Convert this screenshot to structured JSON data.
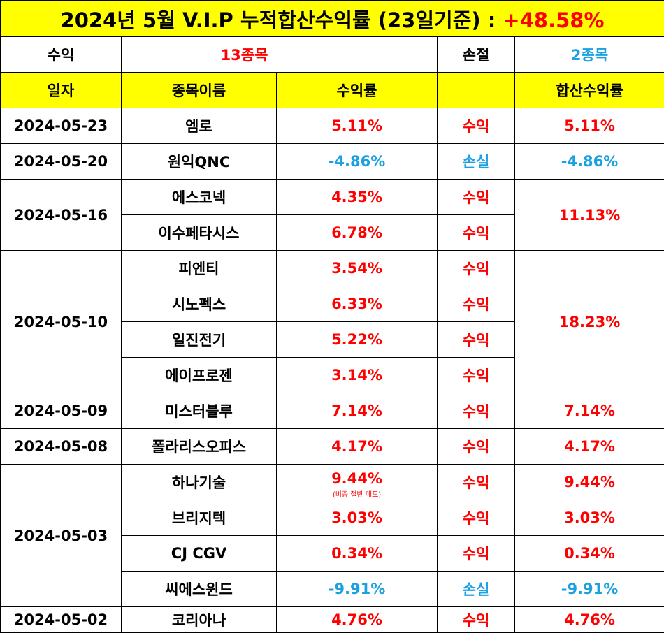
{
  "title": {
    "text": "2024년 5월 V.I.P 누적합산수익률 (23일기준) : ",
    "value": "+48.58%"
  },
  "summary": {
    "profit_label": "수익",
    "profit_value": "13종목",
    "loss_label": "손절",
    "loss_value": "2종목"
  },
  "headers": {
    "date": "일자",
    "name": "종목이름",
    "rate": "수익률",
    "result": "",
    "total": "합산수익률"
  },
  "groups": [
    {
      "date": "2024-05-23",
      "total": "5.11%",
      "total_color": "red",
      "rows": [
        {
          "name": "엠로",
          "rate": "5.11%",
          "color": "red",
          "result": "수익"
        }
      ]
    },
    {
      "date": "2024-05-20",
      "total": "-4.86%",
      "total_color": "blue",
      "rows": [
        {
          "name": "원익QNC",
          "rate": "-4.86%",
          "color": "blue",
          "result": "손실"
        }
      ]
    },
    {
      "date": "2024-05-16",
      "total": "11.13%",
      "total_color": "red",
      "rows": [
        {
          "name": "에스코넥",
          "rate": "4.35%",
          "color": "red",
          "result": "수익"
        },
        {
          "name": "이수페타시스",
          "rate": "6.78%",
          "color": "red",
          "result": "수익"
        }
      ]
    },
    {
      "date": "2024-05-10",
      "total": "18.23%",
      "total_color": "red",
      "rows": [
        {
          "name": "피엔티",
          "rate": "3.54%",
          "color": "red",
          "result": "수익"
        },
        {
          "name": "시노펙스",
          "rate": "6.33%",
          "color": "red",
          "result": "수익"
        },
        {
          "name": "일진전기",
          "rate": "5.22%",
          "color": "red",
          "result": "수익"
        },
        {
          "name": "에이프로젠",
          "rate": "3.14%",
          "color": "red",
          "result": "수익"
        }
      ]
    },
    {
      "date": "2024-05-09",
      "total": "7.14%",
      "total_color": "red",
      "rows": [
        {
          "name": "미스터블루",
          "rate": "7.14%",
          "color": "red",
          "result": "수익"
        }
      ]
    },
    {
      "date": "2024-05-08",
      "total": "4.17%",
      "total_color": "red",
      "rows": [
        {
          "name": "폴라리스오피스",
          "rate": "4.17%",
          "color": "red",
          "result": "수익"
        }
      ]
    },
    {
      "date": "2024-05-03",
      "per_row_total": true,
      "rows": [
        {
          "name": "하나기술",
          "rate": "9.44%",
          "note": "(비중 절반 매도)",
          "color": "red",
          "result": "수익",
          "total": "9.44%"
        },
        {
          "name": "브리지텍",
          "rate": "3.03%",
          "color": "red",
          "result": "수익",
          "total": "3.03%"
        },
        {
          "name": "CJ CGV",
          "rate": "0.34%",
          "color": "red",
          "result": "수익",
          "total": "0.34%"
        },
        {
          "name": "씨에스윈드",
          "rate": "-9.91%",
          "color": "blue",
          "result": "손실",
          "total": "-9.91%"
        }
      ]
    },
    {
      "date": "2024-05-02",
      "total": "4.76%",
      "total_color": "red",
      "rows": [
        {
          "name": "코리아나",
          "rate": "4.76%",
          "color": "red",
          "result": "수익"
        }
      ]
    }
  ]
}
